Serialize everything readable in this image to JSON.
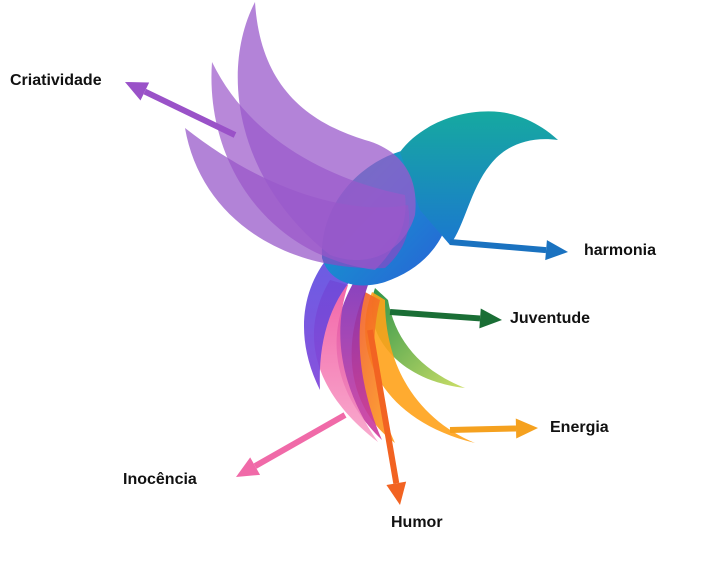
{
  "diagram": {
    "labels": [
      {
        "key": "criatividade",
        "text": "Criatividade",
        "color": "#9a52c8"
      },
      {
        "key": "harmonia",
        "text": "harmonia",
        "color": "#1a72c0"
      },
      {
        "key": "juventude",
        "text": "Juventude",
        "color": "#1a6e35"
      },
      {
        "key": "energia",
        "text": "Energia",
        "color": "#f5a11f"
      },
      {
        "key": "humor",
        "text": "Humor",
        "color": "#f26322"
      },
      {
        "key": "inocencia",
        "text": "Inocência",
        "color": "#f06aa8"
      }
    ]
  }
}
